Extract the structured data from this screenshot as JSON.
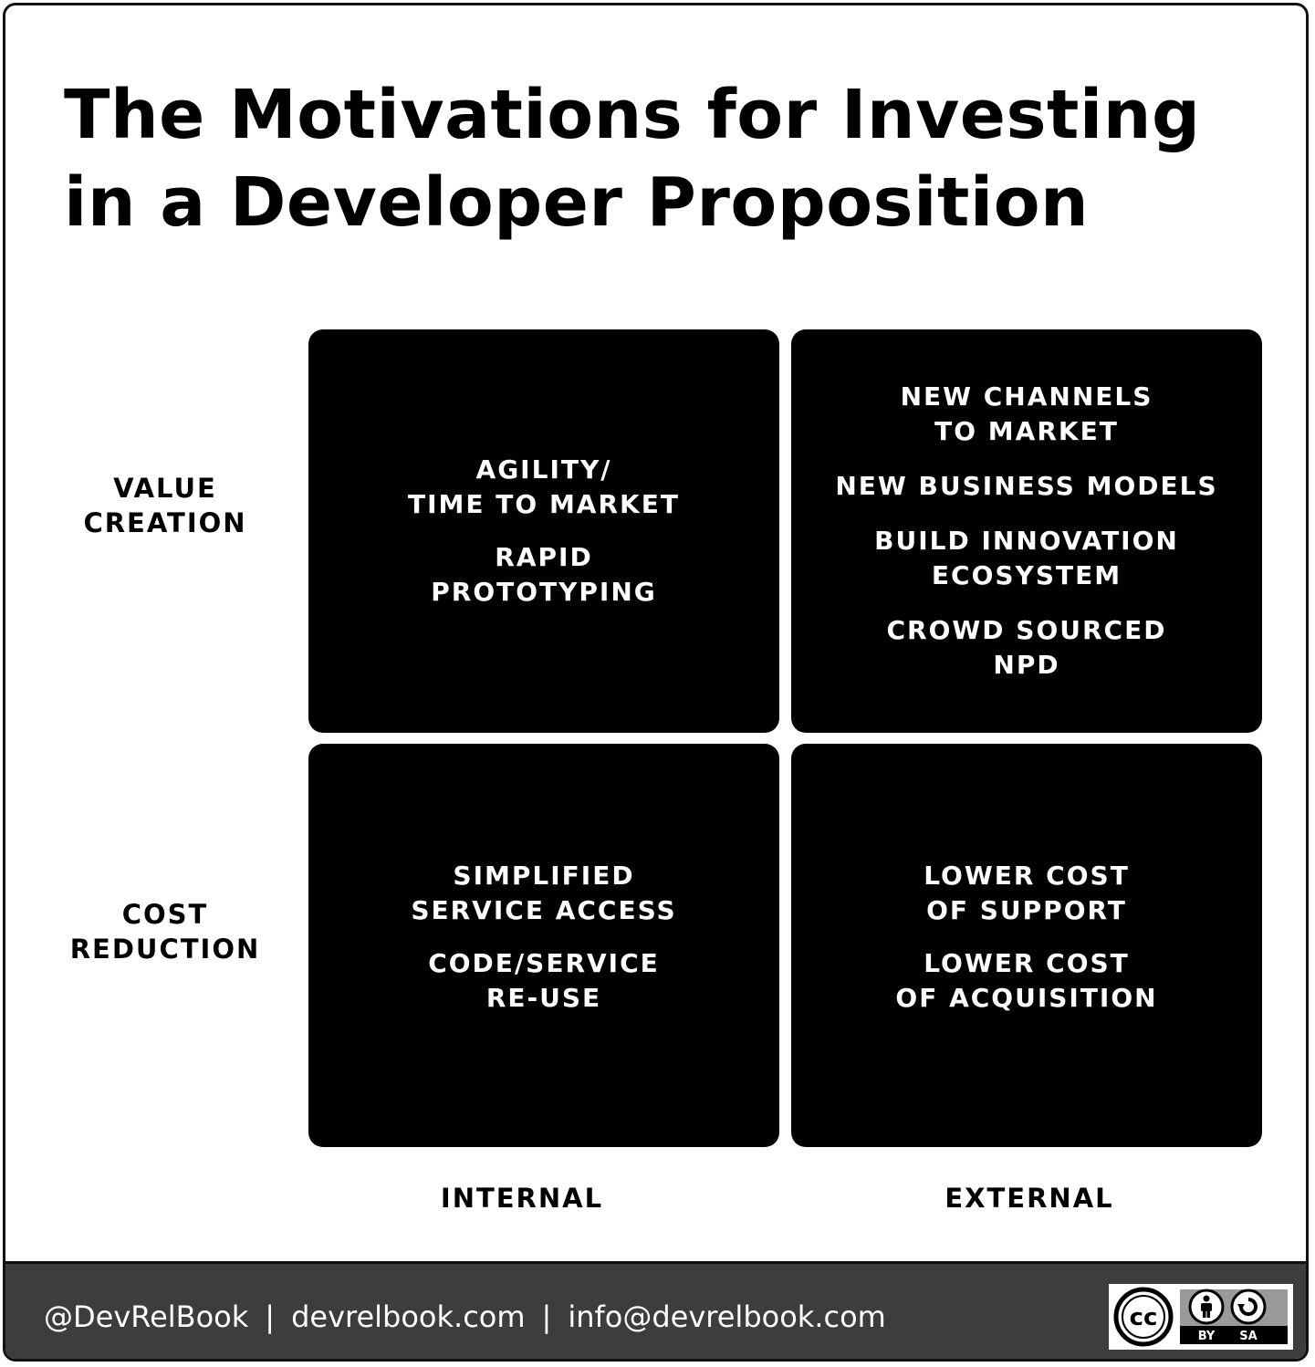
{
  "title": {
    "line1": "The Motivations for Investing",
    "line2": "in a Developer Proposition"
  },
  "rows": {
    "value_creation": [
      "VALUE",
      "CREATION"
    ],
    "cost_reduction": [
      "COST",
      "REDUCTION"
    ]
  },
  "columns": {
    "internal": "INTERNAL",
    "external": "EXTERNAL"
  },
  "quadrants": {
    "value_internal": [
      [
        "AGILITY/",
        "TIME TO MARKET"
      ],
      [
        "RAPID",
        "PROTOTYPING"
      ]
    ],
    "value_external": [
      [
        "NEW CHANNELS",
        "TO MARKET"
      ],
      [
        "NEW BUSINESS MODELS"
      ],
      [
        "BUILD INNOVATION",
        "ECOSYSTEM"
      ],
      [
        "CROWD SOURCED",
        "NPD"
      ]
    ],
    "cost_internal": [
      [
        "SIMPLIFIED",
        "SERVICE ACCESS"
      ],
      [
        "CODE/SERVICE",
        "RE-USE"
      ]
    ],
    "cost_external": [
      [
        "LOWER COST",
        "OF SUPPORT"
      ],
      [
        "LOWER COST",
        "OF ACQUISITION"
      ]
    ]
  },
  "footer": {
    "twitter": "@DevRelBook",
    "separator": "|",
    "website": "devrelbook.com",
    "email": "info@devrelbook.com"
  },
  "license": {
    "cc": "cc",
    "by": "BY",
    "sa": "SA",
    "icons": [
      "cc-icon",
      "attribution-icon",
      "share-alike-icon"
    ]
  },
  "colors": {
    "quadrant": "#000000",
    "footer": "#3d3d3d",
    "text_on_dark": "#ffffff",
    "text": "#000000"
  }
}
